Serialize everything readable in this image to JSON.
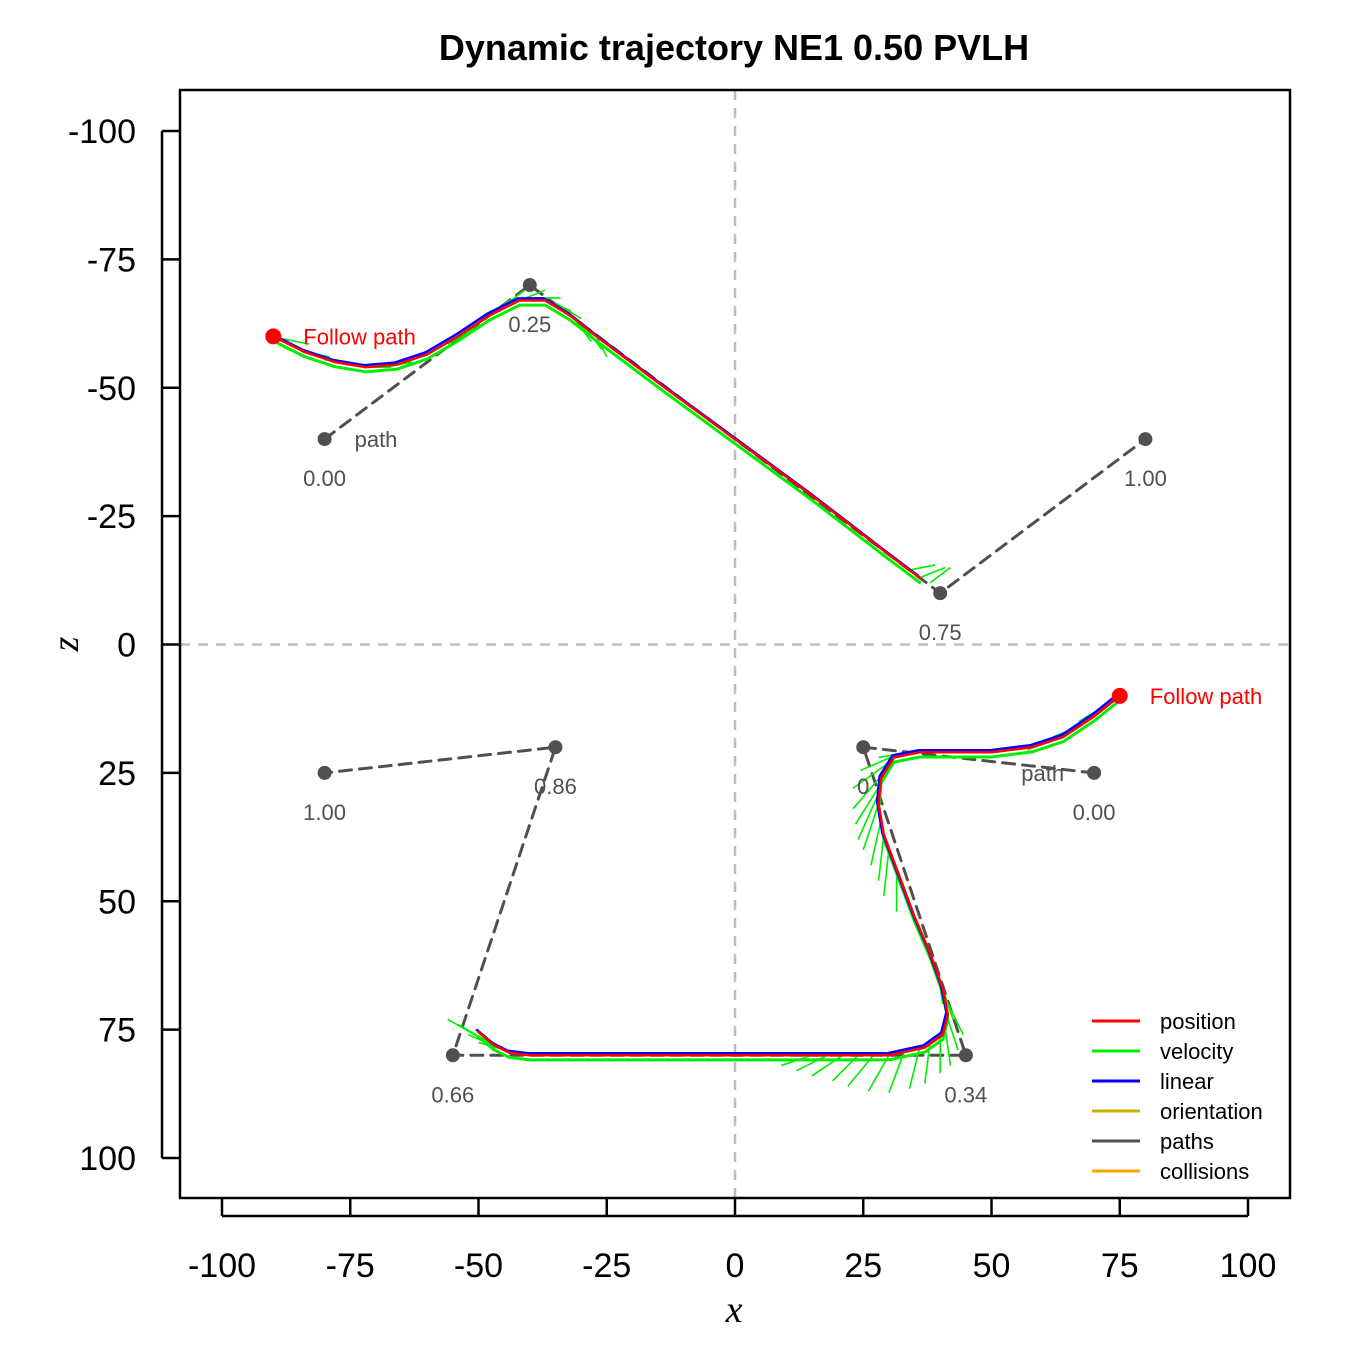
{
  "chart_data": {
    "type": "line",
    "title": "Dynamic trajectory NE1 0.50 PVLH",
    "xlabel": "x",
    "ylabel": "z",
    "xlim": [
      -108,
      108
    ],
    "ylim": [
      -108,
      108
    ],
    "y_axis_inverted": true,
    "x_ticks": [
      -100,
      -75,
      -50,
      -25,
      0,
      25,
      50,
      75,
      100
    ],
    "y_ticks": [
      -100,
      -75,
      -50,
      -25,
      0,
      25,
      50,
      75,
      100
    ],
    "reference_lines": {
      "x": 0,
      "z": 0,
      "style": "dashed",
      "color": "#bebebe"
    },
    "legend": {
      "placement": "bottom-right",
      "entries": [
        {
          "name": "position",
          "color": "#ff0000"
        },
        {
          "name": "velocity",
          "color": "#00ee00"
        },
        {
          "name": "linear",
          "color": "#0000ff"
        },
        {
          "name": "orientation",
          "color": "#cdad00"
        },
        {
          "name": "paths",
          "color": "#505050"
        },
        {
          "name": "collisions",
          "color": "#ffa500"
        }
      ]
    },
    "agents": [
      {
        "start_label": "Follow path",
        "start": {
          "x": -90,
          "z": -60
        },
        "path_label": "path",
        "path": [
          {
            "x": -80,
            "z": -40,
            "label": "0.00"
          },
          {
            "x": -40,
            "z": -70,
            "label": "0.25"
          },
          {
            "x": 40,
            "z": -10,
            "label": "0.75"
          },
          {
            "x": 80,
            "z": -40,
            "label": "1.00"
          }
        ],
        "trajectory": [
          {
            "x": -90,
            "z": -60
          },
          {
            "x": -84,
            "z": -57
          },
          {
            "x": -78,
            "z": -55
          },
          {
            "x": -72,
            "z": -54
          },
          {
            "x": -66,
            "z": -54.5
          },
          {
            "x": -60,
            "z": -56.5
          },
          {
            "x": -54,
            "z": -60
          },
          {
            "x": -48,
            "z": -64
          },
          {
            "x": -42,
            "z": -67
          },
          {
            "x": -37,
            "z": -67
          },
          {
            "x": -32,
            "z": -64
          },
          {
            "x": -27,
            "z": -60
          },
          {
            "x": -15,
            "z": -51
          },
          {
            "x": 0,
            "z": -40
          },
          {
            "x": 15,
            "z": -29
          },
          {
            "x": 30,
            "z": -17.5
          },
          {
            "x": 36,
            "z": -13
          }
        ],
        "velocity_vectors": [
          {
            "x": -88,
            "z": -59.5,
            "dx": 5,
            "dz": 1
          },
          {
            "x": -84,
            "z": -57,
            "dx": 5,
            "dz": 1
          },
          {
            "x": -80,
            "z": -55.5,
            "dx": 5,
            "dz": 1
          },
          {
            "x": -76,
            "z": -54.5,
            "dx": 5,
            "dz": 0
          },
          {
            "x": -72,
            "z": -54,
            "dx": 5,
            "dz": 0
          },
          {
            "x": -68,
            "z": -54,
            "dx": 5,
            "dz": -1
          },
          {
            "x": -64,
            "z": -55,
            "dx": 5,
            "dz": -2
          },
          {
            "x": -60,
            "z": -56.5,
            "dx": 5,
            "dz": -3
          },
          {
            "x": -56,
            "z": -58.5,
            "dx": 5,
            "dz": -3
          },
          {
            "x": -52,
            "z": -61,
            "dx": 4,
            "dz": -3
          },
          {
            "x": -48,
            "z": -64,
            "dx": 4,
            "dz": -3
          },
          {
            "x": -45,
            "z": -66,
            "dx": 4,
            "dz": -3
          },
          {
            "x": -42,
            "z": -67,
            "dx": 5,
            "dz": -2
          },
          {
            "x": -39,
            "z": -67.5,
            "dx": 5,
            "dz": 0
          },
          {
            "x": -37,
            "z": -67,
            "dx": 5,
            "dz": 2
          },
          {
            "x": -35,
            "z": -66.5,
            "dx": 5,
            "dz": 3
          },
          {
            "x": -33,
            "z": -65,
            "dx": 4,
            "dz": 4
          },
          {
            "x": -31,
            "z": -63,
            "dx": 3,
            "dz": 4
          },
          {
            "x": -29,
            "z": -61.5,
            "dx": 3,
            "dz": 4
          },
          {
            "x": -27,
            "z": -60,
            "dx": 2,
            "dz": 4
          },
          {
            "x": 34,
            "z": -14.5,
            "dx": 5,
            "dz": -1
          },
          {
            "x": 36,
            "z": -13,
            "dx": 5,
            "dz": -2
          },
          {
            "x": 38,
            "z": -12,
            "dx": 4,
            "dz": -3
          }
        ]
      },
      {
        "start_label": "Follow path",
        "start": {
          "x": 75,
          "z": 10
        },
        "path_label": "path",
        "path": [
          {
            "x": 70,
            "z": 25,
            "label": "0.00"
          },
          {
            "x": 25,
            "z": 20,
            "label": "0"
          },
          {
            "x": 45,
            "z": 80,
            "label": "0.34"
          },
          {
            "x": -55,
            "z": 80,
            "label": "0.66"
          },
          {
            "x": -35,
            "z": 20,
            "label": "0.86"
          },
          {
            "x": -80,
            "z": 25,
            "label": "1.00"
          }
        ],
        "trajectory": [
          {
            "x": 75,
            "z": 10
          },
          {
            "x": 70,
            "z": 14
          },
          {
            "x": 64,
            "z": 18
          },
          {
            "x": 58,
            "z": 20
          },
          {
            "x": 50,
            "z": 21
          },
          {
            "x": 42,
            "z": 21
          },
          {
            "x": 36,
            "z": 21
          },
          {
            "x": 31,
            "z": 22
          },
          {
            "x": 28.5,
            "z": 26
          },
          {
            "x": 28,
            "z": 31
          },
          {
            "x": 29,
            "z": 37
          },
          {
            "x": 32,
            "z": 45
          },
          {
            "x": 35,
            "z": 53
          },
          {
            "x": 38,
            "z": 60
          },
          {
            "x": 40.5,
            "z": 67
          },
          {
            "x": 41.5,
            "z": 72
          },
          {
            "x": 40.5,
            "z": 76
          },
          {
            "x": 37,
            "z": 78.5
          },
          {
            "x": 30,
            "z": 80
          },
          {
            "x": 20,
            "z": 80
          },
          {
            "x": 0,
            "z": 80
          },
          {
            "x": -20,
            "z": 80
          },
          {
            "x": -40,
            "z": 80
          },
          {
            "x": -44,
            "z": 79.5
          },
          {
            "x": -47,
            "z": 78
          },
          {
            "x": -50,
            "z": 75.5
          }
        ],
        "velocity_vectors": [
          {
            "x": 72,
            "z": 12,
            "dx": -5,
            "dz": 3
          },
          {
            "x": 67,
            "z": 16,
            "dx": -5,
            "dz": 2
          },
          {
            "x": 62,
            "z": 18.5,
            "dx": -5,
            "dz": 2
          },
          {
            "x": 56,
            "z": 20,
            "dx": -5,
            "dz": 1
          },
          {
            "x": 50,
            "z": 21,
            "dx": -5,
            "dz": 0
          },
          {
            "x": 44,
            "z": 21,
            "dx": -5,
            "dz": 0
          },
          {
            "x": 38,
            "z": 21,
            "dx": -5,
            "dz": 0
          },
          {
            "x": 34,
            "z": 21,
            "dx": -6,
            "dz": 1
          },
          {
            "x": 31.5,
            "z": 21.5,
            "dx": -7,
            "dz": 3
          },
          {
            "x": 30,
            "z": 23,
            "dx": -7,
            "dz": 5
          },
          {
            "x": 29,
            "z": 25,
            "dx": -6,
            "dz": 7
          },
          {
            "x": 28.5,
            "z": 27,
            "dx": -5,
            "dz": 8
          },
          {
            "x": 28,
            "z": 29,
            "dx": -4,
            "dz": 9
          },
          {
            "x": 28,
            "z": 31,
            "dx": -3,
            "dz": 9
          },
          {
            "x": 28.5,
            "z": 34,
            "dx": -2,
            "dz": 9
          },
          {
            "x": 29,
            "z": 37,
            "dx": -1,
            "dz": 9
          },
          {
            "x": 30,
            "z": 40,
            "dx": -1,
            "dz": 9
          },
          {
            "x": 31.5,
            "z": 44,
            "dx": 0,
            "dz": 8
          },
          {
            "x": 39.5,
            "z": 64,
            "dx": 1,
            "dz": 6
          },
          {
            "x": 40.5,
            "z": 67,
            "dx": 2,
            "dz": 6
          },
          {
            "x": 41.5,
            "z": 70,
            "dx": 3,
            "dz": 6
          },
          {
            "x": 41.5,
            "z": 73,
            "dx": 2,
            "dz": 6
          },
          {
            "x": 41,
            "z": 75,
            "dx": 1,
            "dz": 7
          },
          {
            "x": 40,
            "z": 76.5,
            "dx": 0,
            "dz": 7
          },
          {
            "x": 38,
            "z": 77.5,
            "dx": -1,
            "dz": 8
          },
          {
            "x": 36,
            "z": 78.5,
            "dx": -2,
            "dz": 8
          },
          {
            "x": 33,
            "z": 79.3,
            "dx": -3,
            "dz": 8
          },
          {
            "x": 30,
            "z": 80,
            "dx": -4,
            "dz": 7
          },
          {
            "x": 27,
            "z": 80,
            "dx": -5,
            "dz": 6
          },
          {
            "x": 24,
            "z": 80,
            "dx": -5,
            "dz": 5
          },
          {
            "x": 21,
            "z": 80,
            "dx": -6,
            "dz": 4
          },
          {
            "x": 18,
            "z": 80,
            "dx": -6,
            "dz": 3
          },
          {
            "x": 15,
            "z": 80,
            "dx": -6,
            "dz": 2
          },
          {
            "x": -43,
            "z": 79.5,
            "dx": -7,
            "dz": -2
          },
          {
            "x": -45,
            "z": 79,
            "dx": -7,
            "dz": -3
          },
          {
            "x": -47,
            "z": 78,
            "dx": -7,
            "dz": -4
          },
          {
            "x": -49,
            "z": 77,
            "dx": -7,
            "dz": -4
          }
        ]
      }
    ]
  }
}
